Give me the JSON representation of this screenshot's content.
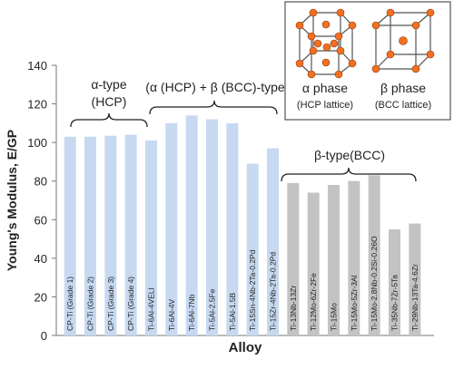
{
  "chart_data": {
    "type": "bar",
    "y_label": "Young's Modulus, E/GP",
    "x_label": "Alloy",
    "categories": [
      "CP-Ti (Grade 1)",
      "CP-Ti (Grade 2)",
      "CP-Ti (Grade 3)",
      "CP-Ti (Grade 4)",
      "Ti-6Al-4VELI",
      "Ti-6Al-4V",
      "Ti-6Al-7Nb",
      "Ti-5Al-2.5Fe",
      "Ti-5Al-1.5B",
      "Ti-15Sn-4Nb-2Ta-0.2Pd",
      "Ti-15Zr-4Nb-2Ta-0.2Pd",
      "Ti-13Nb-13Zr",
      "Ti-12Mo-6Zr-2Fe",
      "Ti-15Mo",
      "Ti-15Mo-5Zr-3Al",
      "Ti-15Mo-2.8Nb-0.2Si-0.26O",
      "Ti-35Nb-7Zr-5Ta",
      "Ti-29Nb-13Ta-4.6Zr"
    ],
    "values": [
      103,
      103,
      103.5,
      104,
      101,
      110,
      114,
      112,
      110,
      89,
      97,
      79,
      74,
      78,
      80,
      83,
      55,
      58
    ],
    "colors": [
      "#c6d9f1",
      "#c6d9f1",
      "#c6d9f1",
      "#c6d9f1",
      "#c6d9f1",
      "#c6d9f1",
      "#c6d9f1",
      "#c6d9f1",
      "#c6d9f1",
      "#c6d9f1",
      "#c6d9f1",
      "#c3c3c3",
      "#c3c3c3",
      "#c3c3c3",
      "#c3c3c3",
      "#c3c3c3",
      "#c3c3c3",
      "#c3c3c3"
    ],
    "ylim": [
      0,
      140
    ],
    "yticks": [
      0,
      20,
      40,
      60,
      80,
      100,
      120,
      140
    ],
    "annotations": {
      "alpha_type": "α-type",
      "alpha_hcp": "(HCP)",
      "alpha_beta": "(α (HCP) + β (BCC)-type",
      "beta_type": "β-type(BCC)"
    },
    "inset": {
      "alpha_phase": "α phase",
      "alpha_lattice": "(HCP lattice)",
      "beta_phase": "β phase",
      "beta_lattice": "(BCC lattice)"
    }
  }
}
